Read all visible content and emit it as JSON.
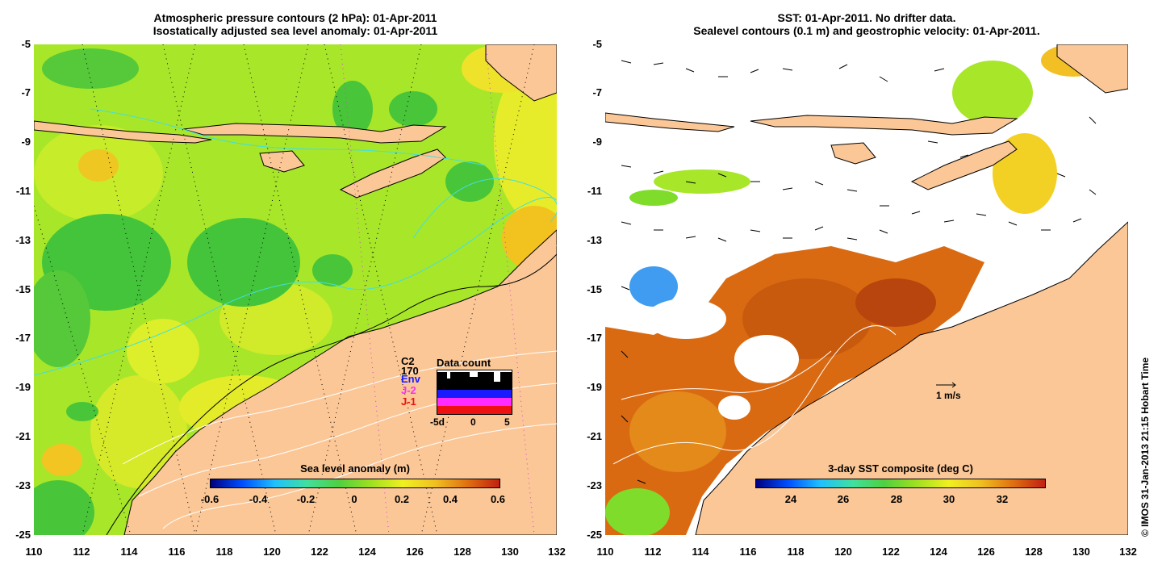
{
  "left_panel": {
    "title_line1": "Atmospheric pressure contours (2 hPa): 01-Apr-2011",
    "title_line2": "Isostatically adjusted sea level anomaly: 01-Apr-2011",
    "colorbar_title": "Sea level anomaly (m)",
    "colorbar_ticks": [
      "-0.6",
      "-0.4",
      "-0.2",
      "0",
      "0.2",
      "0.4",
      "0.6"
    ],
    "inset": {
      "title": "Data count",
      "satellites": [
        "C2",
        "170",
        "Env",
        "J-2",
        "J-1"
      ],
      "x_ticks": [
        "-5d",
        "0",
        "5"
      ],
      "colors": {
        "C2": "#000000",
        "170": "#000000",
        "Env": "#1a1aff",
        "J-2": "#ff2bff",
        "J-1": "#ee1111"
      }
    }
  },
  "right_panel": {
    "title_line1": "SST: 01-Apr-2011. No drifter data.",
    "title_line2": "Sealevel contours (0.1 m) and geostrophic velocity: 01-Apr-2011.",
    "colorbar_title": "3-day SST composite (deg C)",
    "colorbar_ticks": [
      "24",
      "26",
      "28",
      "30",
      "32"
    ],
    "velocity_scale_label": "1 m/s"
  },
  "axes": {
    "y_ticks": [
      "-5",
      "-7",
      "-9",
      "-11",
      "-13",
      "-15",
      "-17",
      "-19",
      "-21",
      "-23",
      "-25"
    ],
    "x_ticks": [
      "110",
      "112",
      "114",
      "116",
      "118",
      "120",
      "122",
      "124",
      "126",
      "128",
      "130",
      "132"
    ]
  },
  "credit": "© IMOS 31-Jan-2013 21:15 Hobart Time",
  "colors": {
    "land": "#fbc797",
    "sla_green": "#7fdc2a",
    "sla_yellow": "#dff02a",
    "sst_orange": "#d96a12",
    "contour_cyan": "#40e0e0",
    "no_data": "#ffffff"
  }
}
